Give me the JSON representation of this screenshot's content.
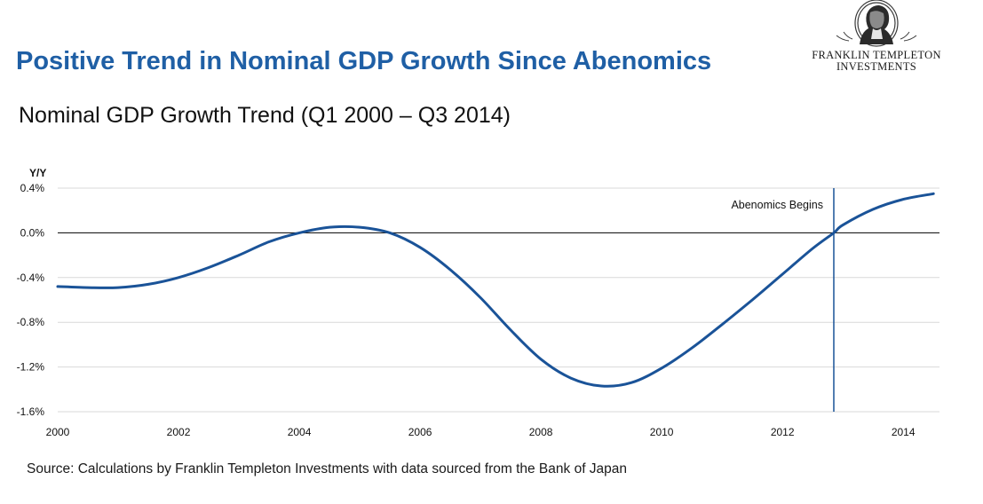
{
  "title": "Positive Trend in Nominal GDP Growth Since Abenomics",
  "brand": {
    "line1": "FRANKLIN TEMPLETON",
    "line2": "INVESTMENTS",
    "logo_icon": "franklin-portrait-icon"
  },
  "source": "Source: Calculations by Franklin Templeton Investments  with data sourced from the Bank of Japan",
  "colors": {
    "title": "#1f5fa5",
    "line": "#1a5398",
    "grid": "#d9d9d9",
    "zero_line": "#000000"
  },
  "chart_data": {
    "type": "line",
    "title": "Nominal GDP Growth Trend (Q1 2000 – Q3 2014)",
    "ylabel": "Y/Y",
    "xlabel": "",
    "xlim": [
      2000,
      2014.6
    ],
    "ylim": [
      -1.6,
      0.4
    ],
    "x_ticks": [
      2000,
      2002,
      2004,
      2006,
      2008,
      2010,
      2012,
      2014
    ],
    "y_ticks": [
      0.4,
      0.0,
      -0.4,
      -0.8,
      -1.2,
      -1.6
    ],
    "y_tick_labels": [
      "0.4%",
      "0.0%",
      "-0.4%",
      "-0.8%",
      "-1.2%",
      "-1.6%"
    ],
    "grid": "horizontal",
    "series": [
      {
        "x": [
          2000.0,
          2000.5,
          2001.0,
          2001.5,
          2002.0,
          2002.5,
          2003.0,
          2003.5,
          2004.0,
          2004.5,
          2005.0,
          2005.5,
          2006.0,
          2006.5,
          2007.0,
          2007.5,
          2008.0,
          2008.5,
          2009.0,
          2009.5,
          2010.0,
          2010.5,
          2011.0,
          2011.5,
          2012.0,
          2012.5,
          2012.85,
          2013.0,
          2013.5,
          2014.0,
          2014.5
        ],
        "values": [
          -0.48,
          -0.49,
          -0.49,
          -0.46,
          -0.4,
          -0.31,
          -0.2,
          -0.08,
          0.0,
          0.05,
          0.05,
          0.0,
          -0.13,
          -0.33,
          -0.58,
          -0.87,
          -1.13,
          -1.3,
          -1.37,
          -1.34,
          -1.21,
          -1.03,
          -0.82,
          -0.6,
          -0.37,
          -0.14,
          0.0,
          0.07,
          0.21,
          0.3,
          0.35
        ]
      }
    ],
    "annotations": [
      {
        "type": "vline",
        "x": 2012.85,
        "label": "Abenomics Begins"
      }
    ]
  }
}
